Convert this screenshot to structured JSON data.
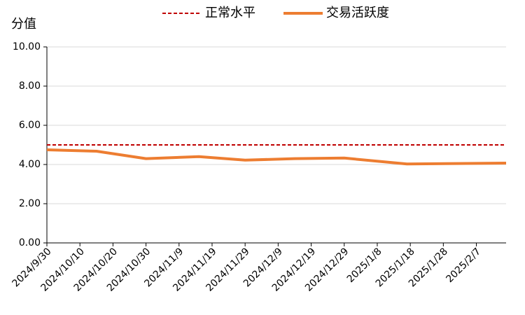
{
  "chart_data": {
    "type": "line",
    "y_label": "分值",
    "x": [
      "2024/9/30",
      "2024/10/15",
      "2024/10/30",
      "2024/11/15",
      "2024/11/29",
      "2024/12/14",
      "2024/12/29",
      "2025/1/17",
      "2025/2/1",
      "2025/2/16"
    ],
    "series": [
      {
        "name": "正常水平",
        "color": "#c00000",
        "dash": true,
        "values": [
          5,
          5,
          5,
          5,
          5,
          5,
          5,
          5,
          5,
          5
        ]
      },
      {
        "name": "交易活跃度",
        "color": "#ed7d31",
        "dash": false,
        "values": [
          4.75,
          4.68,
          4.3,
          4.4,
          4.22,
          4.3,
          4.33,
          4.03,
          4.05,
          4.07
        ]
      }
    ],
    "xlim": [
      "2024/9/30",
      "2025/2/16"
    ],
    "xticks": [
      "2024/9/30",
      "2024/10/10",
      "2024/10/20",
      "2024/10/30",
      "2024/11/9",
      "2024/11/19",
      "2024/11/29",
      "2024/12/9",
      "2024/12/19",
      "2024/12/29",
      "2025/1/8",
      "2025/1/18",
      "2025/1/28",
      "2025/2/7"
    ],
    "ylim": [
      0,
      10
    ],
    "yticks": [
      {
        "value": 0,
        "label": "0.00"
      },
      {
        "value": 2,
        "label": "2.00"
      },
      {
        "value": 4,
        "label": "4.00"
      },
      {
        "value": 6,
        "label": "6.00"
      },
      {
        "value": 8,
        "label": "8.00"
      },
      {
        "value": 10,
        "label": "10.00"
      }
    ],
    "legend": "top"
  }
}
